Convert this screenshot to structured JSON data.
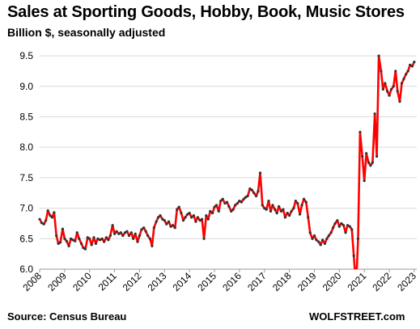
{
  "header": {
    "title": "Sales at Sporting Goods, Hobby, Book, Music Stores",
    "subtitle": "Billion $, seasonally adjusted"
  },
  "footer": {
    "source": "Source: Census Bureau",
    "brand": "WOLFSTREET.com"
  },
  "colors": {
    "line": "#ff0000",
    "marker": "#333333",
    "grid": "#d9d9d9",
    "axis": "#999999"
  },
  "chart_data": {
    "type": "line",
    "title": "Sales at Sporting Goods, Hobby, Book, Music Stores",
    "subtitle": "Billion $, seasonally adjusted",
    "xlabel": "",
    "ylabel": "",
    "ylim": [
      6.0,
      9.5
    ],
    "xlim": [
      2008.0,
      2023.1
    ],
    "yticks": [
      "6.0",
      "6.5",
      "7.0",
      "7.5",
      "8.0",
      "8.5",
      "9.0",
      "9.5"
    ],
    "xticks": [
      "2008",
      "2009",
      "2010",
      "2011",
      "2012",
      "2013",
      "2014",
      "2015",
      "2016",
      "2017",
      "2018",
      "2019",
      "2020",
      "2021",
      "2022",
      "2023"
    ],
    "grid": "horizontal",
    "legend": "none",
    "series": [
      {
        "x": [
          2008.0,
          2008.08,
          2008.17,
          2008.25,
          2008.33,
          2008.42,
          2008.5,
          2008.58,
          2008.67,
          2008.75,
          2008.83,
          2008.92,
          2009.0,
          2009.08,
          2009.17,
          2009.25,
          2009.33,
          2009.42,
          2009.5,
          2009.58,
          2009.67,
          2009.75,
          2009.83,
          2009.92,
          2010.0,
          2010.08,
          2010.17,
          2010.25,
          2010.33,
          2010.42,
          2010.5,
          2010.58,
          2010.67,
          2010.75,
          2010.83,
          2010.92,
          2011.0,
          2011.08,
          2011.17,
          2011.25,
          2011.33,
          2011.42,
          2011.5,
          2011.58,
          2011.67,
          2011.75,
          2011.83,
          2011.92,
          2012.0,
          2012.08,
          2012.17,
          2012.25,
          2012.33,
          2012.42,
          2012.5,
          2012.58,
          2012.67,
          2012.75,
          2012.83,
          2012.92,
          2013.0,
          2013.08,
          2013.17,
          2013.25,
          2013.33,
          2013.42,
          2013.5,
          2013.58,
          2013.67,
          2013.75,
          2013.83,
          2013.92,
          2014.0,
          2014.08,
          2014.17,
          2014.25,
          2014.33,
          2014.42,
          2014.5,
          2014.58,
          2014.67,
          2014.75,
          2014.83,
          2014.92,
          2015.0,
          2015.08,
          2015.17,
          2015.25,
          2015.33,
          2015.42,
          2015.5,
          2015.58,
          2015.67,
          2015.75,
          2015.83,
          2015.92,
          2016.0,
          2016.08,
          2016.17,
          2016.25,
          2016.33,
          2016.42,
          2016.5,
          2016.58,
          2016.67,
          2016.75,
          2016.83,
          2016.92,
          2017.0,
          2017.08,
          2017.17,
          2017.25,
          2017.33,
          2017.42,
          2017.5,
          2017.58,
          2017.67,
          2017.75,
          2017.83,
          2017.92,
          2018.0,
          2018.08,
          2018.17,
          2018.25,
          2018.33,
          2018.42,
          2018.5,
          2018.58,
          2018.67,
          2018.75,
          2018.83,
          2018.92,
          2019.0,
          2019.08,
          2019.17,
          2019.25,
          2019.33,
          2019.42,
          2019.5,
          2019.58,
          2019.67,
          2019.75,
          2019.83,
          2019.92,
          2020.0,
          2020.08,
          2020.17,
          2020.25,
          2020.33,
          2020.42,
          2020.5,
          2020.58,
          2020.67,
          2020.75,
          2020.83,
          2020.92,
          2021.0,
          2021.08,
          2021.17,
          2021.25,
          2021.33,
          2021.42,
          2021.5,
          2021.58,
          2021.67,
          2021.75,
          2021.83,
          2021.92,
          2022.0,
          2022.08,
          2022.17,
          2022.25,
          2022.33,
          2022.42,
          2022.5,
          2022.58,
          2022.67,
          2022.75,
          2022.83,
          2022.92,
          2023.0
        ],
        "y": [
          6.82,
          6.76,
          6.74,
          6.8,
          6.96,
          6.88,
          6.85,
          6.93,
          6.55,
          6.42,
          6.44,
          6.66,
          6.5,
          6.46,
          6.38,
          6.5,
          6.48,
          6.46,
          6.6,
          6.5,
          6.42,
          6.35,
          6.33,
          6.52,
          6.5,
          6.4,
          6.52,
          6.42,
          6.5,
          6.48,
          6.5,
          6.45,
          6.52,
          6.48,
          6.55,
          6.72,
          6.58,
          6.62,
          6.58,
          6.6,
          6.55,
          6.6,
          6.62,
          6.55,
          6.6,
          6.5,
          6.58,
          6.45,
          6.55,
          6.65,
          6.68,
          6.62,
          6.55,
          6.5,
          6.38,
          6.68,
          6.78,
          6.85,
          6.88,
          6.82,
          6.8,
          6.74,
          6.78,
          6.7,
          6.72,
          6.68,
          6.98,
          7.02,
          6.92,
          6.8,
          6.85,
          6.9,
          6.92,
          6.85,
          6.88,
          6.78,
          6.85,
          6.8,
          6.82,
          6.5,
          6.88,
          6.82,
          6.95,
          6.92,
          7.02,
          7.05,
          6.95,
          7.12,
          7.15,
          7.08,
          7.1,
          7.03,
          6.95,
          6.98,
          7.05,
          7.08,
          7.12,
          7.1,
          7.15,
          7.18,
          7.2,
          7.32,
          7.3,
          7.25,
          7.2,
          7.28,
          7.58,
          7.05,
          7.0,
          6.98,
          7.12,
          6.95,
          7.05,
          6.98,
          6.92,
          7.03,
          6.95,
          6.98,
          6.85,
          6.92,
          6.88,
          6.95,
          7.0,
          7.12,
          7.08,
          6.9,
          7.05,
          7.15,
          7.1,
          6.85,
          6.6,
          6.5,
          6.55,
          6.48,
          6.45,
          6.4,
          6.48,
          6.42,
          6.5,
          6.55,
          6.6,
          6.68,
          6.75,
          6.8,
          6.7,
          6.75,
          6.72,
          6.6,
          6.72,
          6.7,
          6.65,
          6.22,
          5.7,
          6.5,
          8.25,
          7.85,
          7.45,
          7.9,
          7.75,
          7.7,
          7.75,
          8.55,
          7.85,
          9.5,
          9.25,
          8.95,
          9.05,
          8.92,
          8.85,
          8.95,
          9.0,
          9.25,
          8.92,
          8.75,
          9.05,
          9.12,
          9.2,
          9.25,
          9.35,
          9.33,
          9.4
        ],
        "note": ""
      }
    ]
  }
}
